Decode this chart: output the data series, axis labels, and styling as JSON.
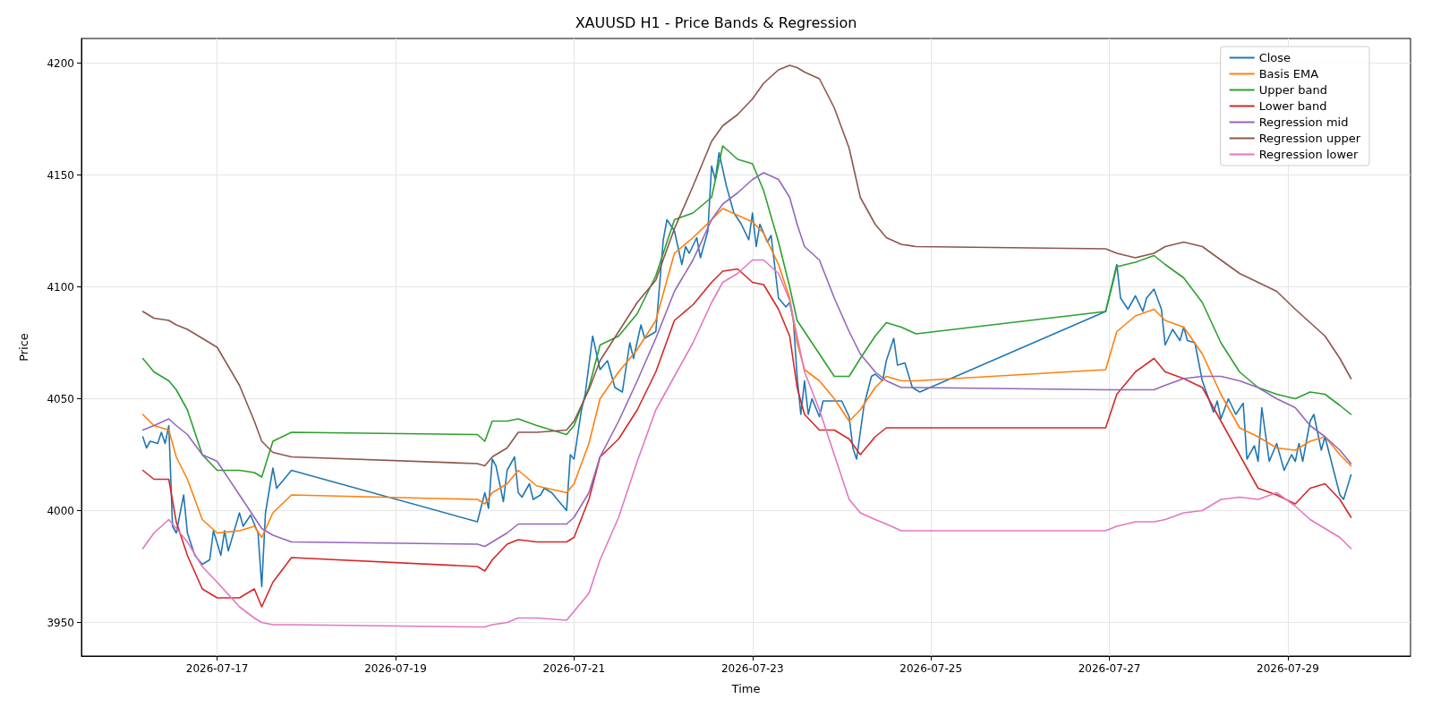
{
  "chart_data": {
    "type": "line",
    "title": "XAUUSD H1 - Price Bands & Regression",
    "xlabel": "Time",
    "ylabel": "Price",
    "xlim": [
      "2026-07-15T11:30",
      "2026-07-30T09:00"
    ],
    "ylim": [
      3935,
      4211
    ],
    "xticks": [
      {
        "value": "2026-07-17",
        "label": "2026-07-17"
      },
      {
        "value": "2026-07-19",
        "label": "2026-07-19"
      },
      {
        "value": "2026-07-21",
        "label": "2026-07-21"
      },
      {
        "value": "2026-07-23",
        "label": "2026-07-23"
      },
      {
        "value": "2026-07-25",
        "label": "2026-07-25"
      },
      {
        "value": "2026-07-27",
        "label": "2026-07-27"
      },
      {
        "value": "2026-07-29",
        "label": "2026-07-29"
      }
    ],
    "yticks": [
      3950,
      4000,
      4050,
      4100,
      4150,
      4200
    ],
    "grid": true,
    "legend": "top right",
    "x": [
      "2026-07-16T04:00",
      "2026-07-16T07:00",
      "2026-07-16T11:00",
      "2026-07-16T13:00",
      "2026-07-16T16:00",
      "2026-07-16T20:00",
      "2026-07-17T00:00",
      "2026-07-17T06:00",
      "2026-07-17T10:00",
      "2026-07-17T12:00",
      "2026-07-17T15:00",
      "2026-07-17T20:00",
      "2026-07-19T22:00",
      "2026-07-20T00:00",
      "2026-07-20T02:00",
      "2026-07-20T06:00",
      "2026-07-20T09:00",
      "2026-07-20T14:00",
      "2026-07-20T22:00",
      "2026-07-21T00:00",
      "2026-07-21T04:00",
      "2026-07-21T07:00",
      "2026-07-21T12:00",
      "2026-07-21T17:00",
      "2026-07-21T22:00",
      "2026-07-22T03:00",
      "2026-07-22T08:00",
      "2026-07-22T13:00",
      "2026-07-22T16:00",
      "2026-07-22T20:00",
      "2026-07-23T00:00",
      "2026-07-23T03:00",
      "2026-07-23T07:00",
      "2026-07-23T10:00",
      "2026-07-23T12:00",
      "2026-07-23T14:00",
      "2026-07-23T18:00",
      "2026-07-23T22:00",
      "2026-07-24T02:00",
      "2026-07-24T05:00",
      "2026-07-24T09:00",
      "2026-07-24T12:00",
      "2026-07-24T16:00",
      "2026-07-24T20:00",
      "2026-07-26T23:00",
      "2026-07-27T02:00",
      "2026-07-27T07:00",
      "2026-07-27T12:00",
      "2026-07-27T15:00",
      "2026-07-27T20:00",
      "2026-07-28T01:00",
      "2026-07-28T06:00",
      "2026-07-28T11:00",
      "2026-07-28T16:00",
      "2026-07-28T21:00",
      "2026-07-29T02:00",
      "2026-07-29T06:00",
      "2026-07-29T10:00",
      "2026-07-29T14:00",
      "2026-07-29T17:00"
    ],
    "series": [
      {
        "name": "Close",
        "color": "#1f77b4",
        "x": [
          "2026-07-16T04:00",
          "2026-07-16T05:00",
          "2026-07-16T06:00",
          "2026-07-16T08:00",
          "2026-07-16T09:00",
          "2026-07-16T10:00",
          "2026-07-16T11:00",
          "2026-07-16T12:00",
          "2026-07-16T13:00",
          "2026-07-16T15:00",
          "2026-07-16T16:00",
          "2026-07-16T18:00",
          "2026-07-16T20:00",
          "2026-07-16T22:00",
          "2026-07-16T23:00",
          "2026-07-17T01:00",
          "2026-07-17T02:00",
          "2026-07-17T03:00",
          "2026-07-17T06:00",
          "2026-07-17T07:00",
          "2026-07-17T09:00",
          "2026-07-17T11:00",
          "2026-07-17T12:00",
          "2026-07-17T13:00",
          "2026-07-17T15:00",
          "2026-07-17T16:00",
          "2026-07-17T20:00",
          "2026-07-19T22:00",
          "2026-07-20T00:00",
          "2026-07-20T01:00",
          "2026-07-20T02:00",
          "2026-07-20T03:00",
          "2026-07-20T05:00",
          "2026-07-20T06:00",
          "2026-07-20T08:00",
          "2026-07-20T09:00",
          "2026-07-20T10:00",
          "2026-07-20T12:00",
          "2026-07-20T13:00",
          "2026-07-20T15:00",
          "2026-07-20T16:00",
          "2026-07-20T18:00",
          "2026-07-20T22:00",
          "2026-07-20T23:00",
          "2026-07-21T00:00",
          "2026-07-21T02:00",
          "2026-07-21T03:00",
          "2026-07-21T05:00",
          "2026-07-21T07:00",
          "2026-07-21T09:00",
          "2026-07-21T11:00",
          "2026-07-21T13:00",
          "2026-07-21T15:00",
          "2026-07-21T16:00",
          "2026-07-21T18:00",
          "2026-07-21T19:00",
          "2026-07-21T22:00",
          "2026-07-22T00:00",
          "2026-07-22T01:00",
          "2026-07-22T03:00",
          "2026-07-22T05:00",
          "2026-07-22T06:00",
          "2026-07-22T07:00",
          "2026-07-22T09:00",
          "2026-07-22T10:00",
          "2026-07-22T12:00",
          "2026-07-22T13:00",
          "2026-07-22T14:00",
          "2026-07-22T15:00",
          "2026-07-22T17:00",
          "2026-07-22T19:00",
          "2026-07-22T21:00",
          "2026-07-22T23:00",
          "2026-07-23T00:00",
          "2026-07-23T01:00",
          "2026-07-23T02:00",
          "2026-07-23T04:00",
          "2026-07-23T05:00",
          "2026-07-23T07:00",
          "2026-07-23T09:00",
          "2026-07-23T10:00",
          "2026-07-23T11:00",
          "2026-07-23T12:00",
          "2026-07-23T13:00",
          "2026-07-23T14:00",
          "2026-07-23T15:00",
          "2026-07-23T16:00",
          "2026-07-23T18:00",
          "2026-07-23T19:00",
          "2026-07-23T22:00",
          "2026-07-24T00:00",
          "2026-07-24T02:00",
          "2026-07-24T03:00",
          "2026-07-24T04:00",
          "2026-07-24T06:00",
          "2026-07-24T08:00",
          "2026-07-24T09:00",
          "2026-07-24T11:00",
          "2026-07-24T12:00",
          "2026-07-24T14:00",
          "2026-07-24T15:00",
          "2026-07-24T17:00",
          "2026-07-24T19:00",
          "2026-07-24T21:00",
          "2026-07-26T23:00",
          "2026-07-27T02:00",
          "2026-07-27T03:00",
          "2026-07-27T05:00",
          "2026-07-27T07:00",
          "2026-07-27T09:00",
          "2026-07-27T10:00",
          "2026-07-27T12:00",
          "2026-07-27T14:00",
          "2026-07-27T15:00",
          "2026-07-27T17:00",
          "2026-07-27T19:00",
          "2026-07-27T20:00",
          "2026-07-27T21:00",
          "2026-07-27T23:00",
          "2026-07-28T01:00",
          "2026-07-28T04:00",
          "2026-07-28T05:00",
          "2026-07-28T06:00",
          "2026-07-28T08:00",
          "2026-07-28T10:00",
          "2026-07-28T12:00",
          "2026-07-28T13:00",
          "2026-07-28T15:00",
          "2026-07-28T16:00",
          "2026-07-28T17:00",
          "2026-07-28T19:00",
          "2026-07-28T21:00",
          "2026-07-28T23:00",
          "2026-07-29T01:00",
          "2026-07-29T02:00",
          "2026-07-29T03:00",
          "2026-07-29T04:00",
          "2026-07-29T06:00",
          "2026-07-29T07:00",
          "2026-07-29T09:00",
          "2026-07-29T10:00",
          "2026-07-29T12:00",
          "2026-07-29T14:00",
          "2026-07-29T15:00",
          "2026-07-29T17:00"
        ],
        "values": [
          4033,
          4028,
          4031,
          4030,
          4035,
          4030,
          4038,
          3993,
          3990,
          4007,
          3990,
          3980,
          3976,
          3978,
          3991,
          3980,
          3991,
          3982,
          3999,
          3993,
          3998,
          3990,
          3966,
          3999,
          4019,
          4010,
          4018,
          3995,
          4008,
          4001,
          4023,
          4020,
          4004,
          4018,
          4024,
          4008,
          4006,
          4012,
          4005,
          4007,
          4010,
          4008,
          4000,
          4025,
          4023,
          4045,
          4052,
          4078,
          4063,
          4067,
          4055,
          4053,
          4075,
          4068,
          4083,
          4077,
          4080,
          4121,
          4130,
          4125,
          4110,
          4118,
          4115,
          4122,
          4113,
          4125,
          4154,
          4148,
          4160,
          4145,
          4133,
          4128,
          4121,
          4133,
          4118,
          4128,
          4120,
          4123,
          4095,
          4091,
          4093,
          4085,
          4060,
          4043,
          4058,
          4043,
          4050,
          4042,
          4049,
          4049,
          4049,
          4042,
          4028,
          4023,
          4047,
          4060,
          4061,
          4058,
          4067,
          4077,
          4065,
          4066,
          4055,
          4053,
          4089,
          4110,
          4095,
          4090,
          4096,
          4089,
          4095,
          4099,
          4090,
          4074,
          4081,
          4076,
          4082,
          4076,
          4075,
          4058,
          4044,
          4049,
          4041,
          4050,
          4043,
          4048,
          4023,
          4029,
          4022,
          4046,
          4022,
          4030,
          4018,
          4025,
          4022,
          4030,
          4022,
          4040,
          4043,
          4027,
          4033,
          4020,
          4007,
          4005,
          4016
        ]
      },
      {
        "name": "Basis EMA",
        "color": "#ff7f0e",
        "values": [
          4043,
          4038,
          4036,
          4024,
          4014,
          3996,
          3990,
          3991,
          3993,
          3988,
          3999,
          4007,
          4005,
          4003,
          4008,
          4012,
          4018,
          4011,
          4008,
          4012,
          4030,
          4050,
          4062,
          4072,
          4085,
          4115,
          4122,
          4130,
          4135,
          4132,
          4129,
          4124,
          4110,
          4095,
          4075,
          4063,
          4058,
          4050,
          4040,
          4045,
          4055,
          4060,
          4058,
          4058,
          4063,
          4080,
          4087,
          4090,
          4085,
          4082,
          4070,
          4052,
          4037,
          4033,
          4028,
          4027,
          4031,
          4033,
          4025,
          4020
        ]
      },
      {
        "name": "Upper band",
        "color": "#2ca02c",
        "values": [
          4068,
          4062,
          4058,
          4054,
          4045,
          4025,
          4018,
          4018,
          4017,
          4015,
          4031,
          4035,
          4034,
          4031,
          4040,
          4040,
          4041,
          4038,
          4034,
          4038,
          4055,
          4074,
          4078,
          4088,
          4105,
          4130,
          4133,
          4140,
          4163,
          4157,
          4155,
          4143,
          4120,
          4100,
          4085,
          4080,
          4070,
          4060,
          4060,
          4068,
          4078,
          4084,
          4082,
          4079,
          4089,
          4109,
          4111,
          4114,
          4110,
          4104,
          4093,
          4075,
          4062,
          4055,
          4052,
          4050,
          4053,
          4052,
          4047,
          4043
        ]
      },
      {
        "name": "Lower band",
        "color": "#d62728",
        "values": [
          4018,
          4014,
          4014,
          3995,
          3980,
          3965,
          3961,
          3961,
          3965,
          3957,
          3968,
          3979,
          3975,
          3973,
          3978,
          3985,
          3987,
          3986,
          3986,
          3988,
          4005,
          4024,
          4032,
          4045,
          4062,
          4085,
          4092,
          4102,
          4107,
          4108,
          4102,
          4101,
          4090,
          4078,
          4055,
          4043,
          4036,
          4036,
          4032,
          4025,
          4033,
          4037,
          4037,
          4037,
          4037,
          4052,
          4062,
          4068,
          4062,
          4059,
          4055,
          4040,
          4025,
          4010,
          4007,
          4003,
          4010,
          4012,
          4005,
          3997
        ]
      },
      {
        "name": "Regression mid",
        "color": "#9467bd",
        "values": [
          4036,
          4038,
          4041,
          4038,
          4034,
          4025,
          4022,
          4007,
          3997,
          3992,
          3989,
          3986,
          3985,
          3984,
          3986,
          3990,
          3994,
          3994,
          3994,
          3997,
          4008,
          4024,
          4040,
          4058,
          4077,
          4098,
          4112,
          4130,
          4137,
          4142,
          4148,
          4151,
          4148,
          4140,
          4128,
          4118,
          4112,
          4095,
          4080,
          4070,
          4062,
          4058,
          4055,
          4055,
          4054,
          4054,
          4054,
          4054,
          4056,
          4059,
          4060,
          4060,
          4058,
          4055,
          4050,
          4046,
          4038,
          4033,
          4027,
          4021
        ]
      },
      {
        "name": "Regression upper",
        "color": "#8c564b",
        "values": [
          4089,
          4086,
          4085,
          4083,
          4081,
          4077,
          4073,
          4056,
          4040,
          4031,
          4026,
          4024,
          4021,
          4020,
          4024,
          4028,
          4035,
          4035,
          4036,
          4040,
          4054,
          4067,
          4080,
          4093,
          4103,
          4126,
          4145,
          4165,
          4172,
          4177,
          4184,
          4191,
          4197,
          4199,
          4198,
          4196,
          4193,
          4180,
          4162,
          4140,
          4128,
          4122,
          4119,
          4118,
          4117,
          4115,
          4113,
          4115,
          4118,
          4120,
          4118,
          4112,
          4106,
          4102,
          4098,
          4090,
          4084,
          4078,
          4068,
          4059
        ]
      },
      {
        "name": "Regression lower",
        "color": "#e377c2",
        "values": [
          3983,
          3990,
          3996,
          3992,
          3986,
          3975,
          3968,
          3957,
          3952,
          3950,
          3949,
          3949,
          3948,
          3948,
          3949,
          3950,
          3952,
          3952,
          3951,
          3955,
          3963,
          3978,
          3997,
          4022,
          4045,
          4060,
          4075,
          4093,
          4102,
          4106,
          4112,
          4112,
          4106,
          4094,
          4078,
          4062,
          4045,
          4025,
          4005,
          3999,
          3996,
          3994,
          3991,
          3991,
          3991,
          3993,
          3995,
          3995,
          3996,
          3999,
          4000,
          4005,
          4006,
          4005,
          4008,
          4002,
          3996,
          3992,
          3988,
          3983
        ]
      }
    ]
  }
}
